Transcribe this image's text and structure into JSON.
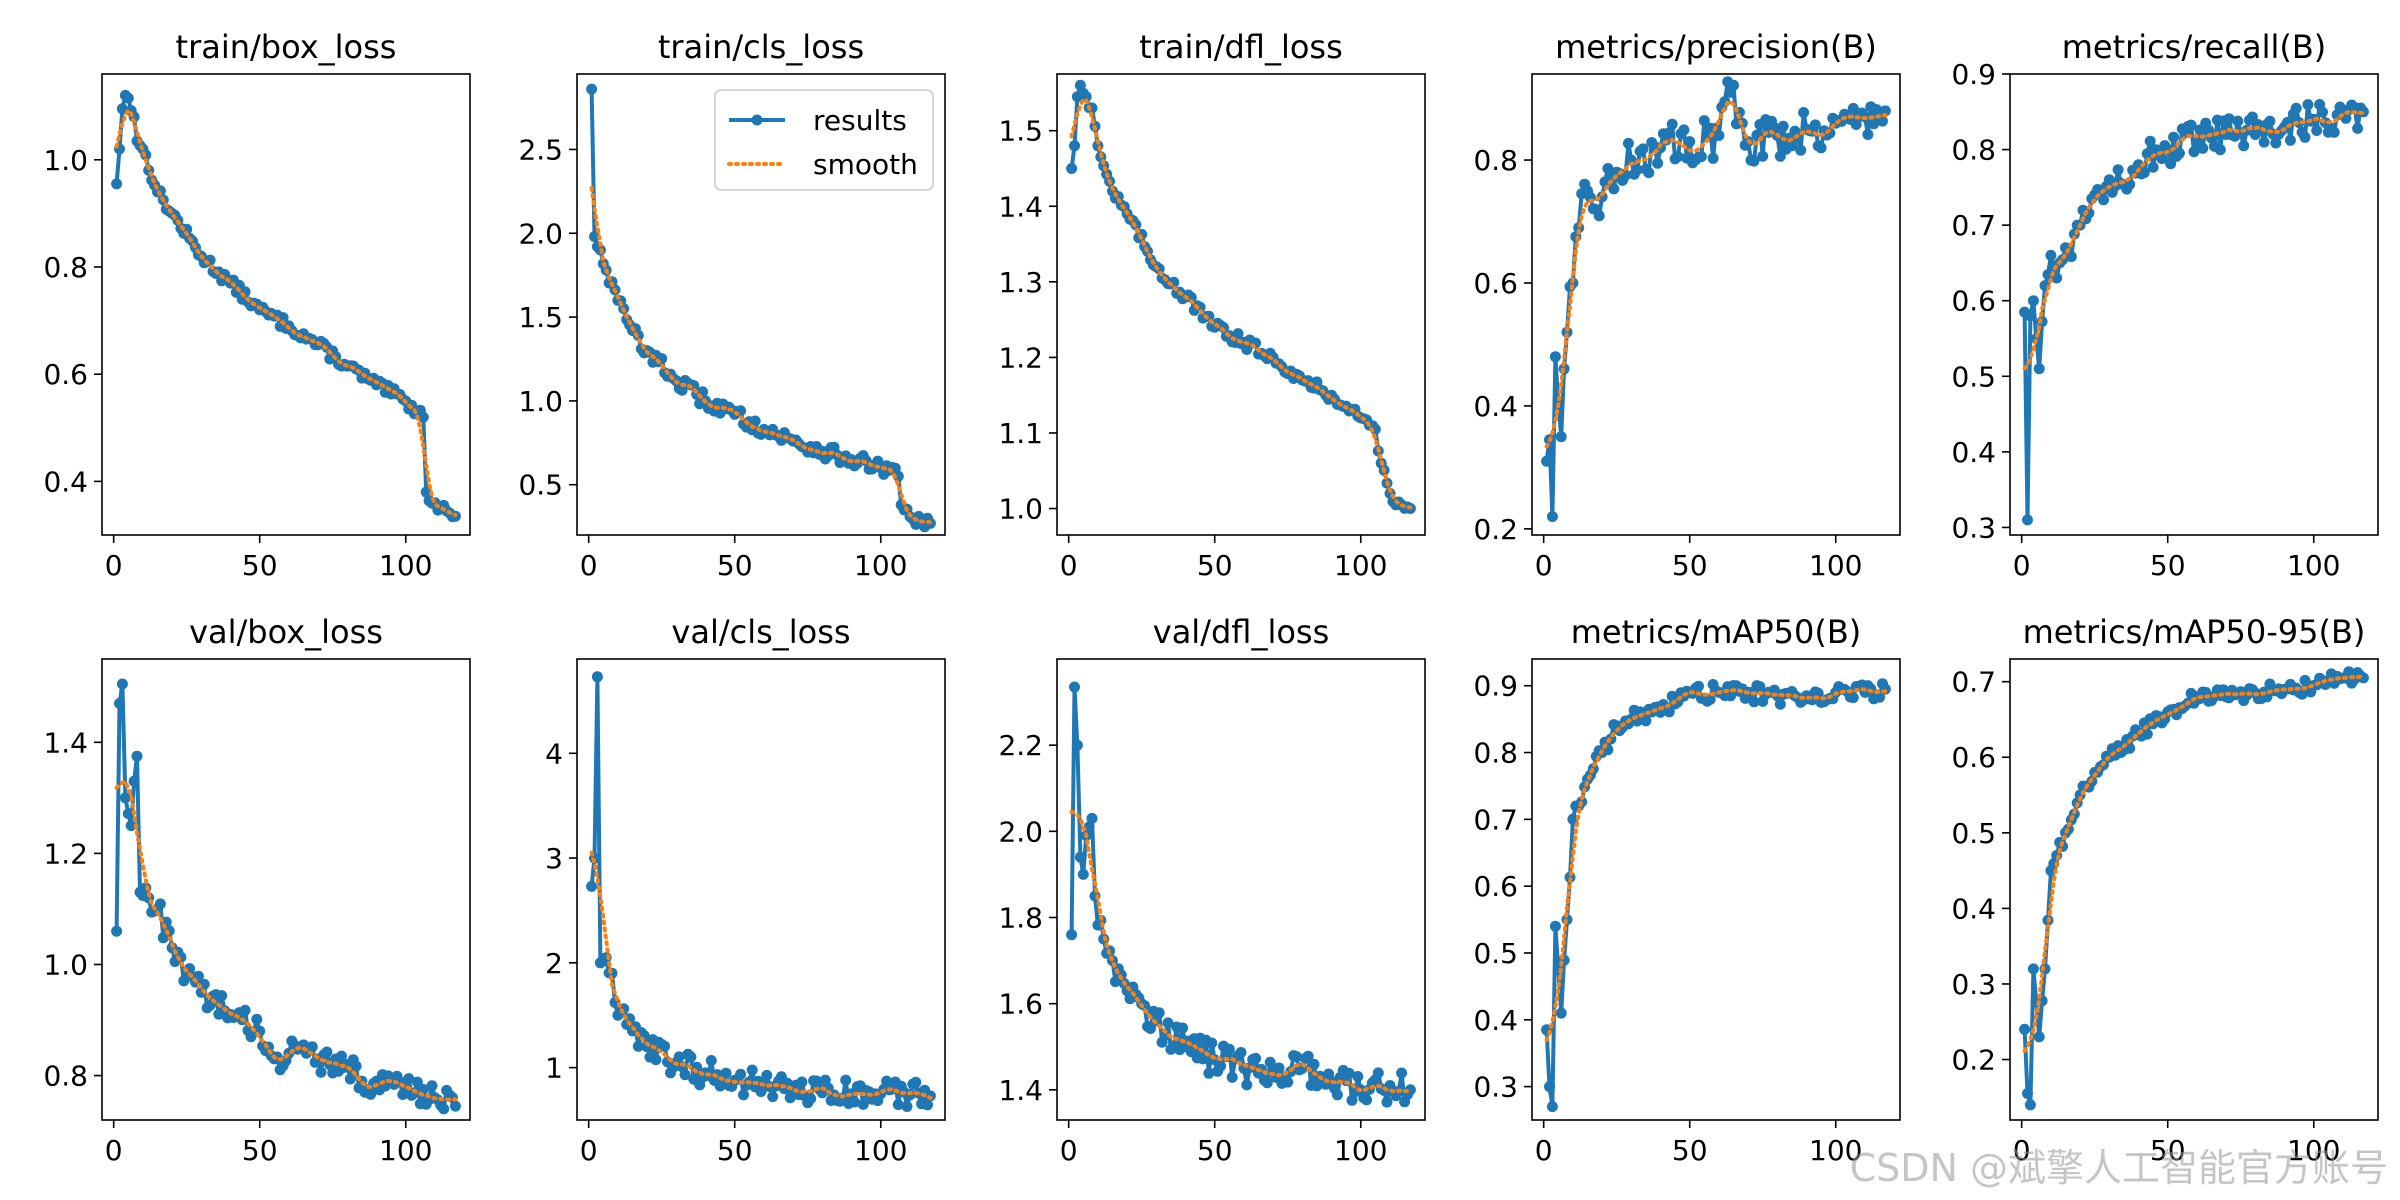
{
  "legend": {
    "series_label": "results",
    "smooth_label": "smooth"
  },
  "colors": {
    "series": "#1f77b4",
    "smooth": "#ff7f0e",
    "axis": "#000000"
  },
  "watermark": "CSDN @斌擎人工智能官方账号",
  "chart_data": [
    {
      "type": "line",
      "title": "train/box_loss",
      "xlim": [
        -4,
        122
      ],
      "ylim": [
        0.3,
        1.16
      ],
      "xticks": [
        0,
        50,
        100
      ],
      "yticks": [
        0.4,
        0.6,
        0.8,
        1.0
      ],
      "ytick_labels": [
        "0.4",
        "0.6",
        "0.8",
        "1.0"
      ],
      "x_range": [
        1,
        117
      ],
      "series_keypoints": [
        [
          1,
          0.955
        ],
        [
          2,
          1.02
        ],
        [
          3,
          1.095
        ],
        [
          4,
          1.12
        ],
        [
          5,
          1.115
        ],
        [
          7,
          1.08
        ],
        [
          8,
          1.035
        ],
        [
          10,
          1.02
        ],
        [
          15,
          0.94
        ],
        [
          20,
          0.9
        ],
        [
          30,
          0.82
        ],
        [
          40,
          0.77
        ],
        [
          50,
          0.72
        ],
        [
          60,
          0.69
        ],
        [
          70,
          0.655
        ],
        [
          80,
          0.615
        ],
        [
          90,
          0.58
        ],
        [
          100,
          0.55
        ],
        [
          104,
          0.53
        ],
        [
          106,
          0.52
        ],
        [
          107,
          0.38
        ],
        [
          110,
          0.36
        ],
        [
          114,
          0.345
        ],
        [
          117,
          0.335
        ]
      ],
      "noise": 0.008,
      "smooth_lag": 3,
      "legend": false
    },
    {
      "type": "line",
      "title": "train/cls_loss",
      "xlim": [
        -4,
        122
      ],
      "ylim": [
        0.2,
        2.95
      ],
      "xticks": [
        0,
        50,
        100
      ],
      "yticks": [
        0.5,
        1.0,
        1.5,
        2.0,
        2.5
      ],
      "ytick_labels": [
        "0.5",
        "1.0",
        "1.5",
        "2.0",
        "2.5"
      ],
      "x_range": [
        1,
        117
      ],
      "series_keypoints": [
        [
          1,
          2.86
        ],
        [
          2,
          1.98
        ],
        [
          4,
          1.9
        ],
        [
          6,
          1.78
        ],
        [
          10,
          1.6
        ],
        [
          15,
          1.42
        ],
        [
          20,
          1.3
        ],
        [
          30,
          1.12
        ],
        [
          40,
          1.0
        ],
        [
          50,
          0.92
        ],
        [
          60,
          0.83
        ],
        [
          70,
          0.76
        ],
        [
          80,
          0.7
        ],
        [
          90,
          0.65
        ],
        [
          100,
          0.6
        ],
        [
          106,
          0.55
        ],
        [
          107,
          0.38
        ],
        [
          110,
          0.31
        ],
        [
          114,
          0.28
        ],
        [
          117,
          0.27
        ]
      ],
      "noise": 0.01,
      "smooth_lag": 3,
      "legend": true
    },
    {
      "type": "line",
      "title": "train/dfl_loss",
      "xlim": [
        -4,
        122
      ],
      "ylim": [
        0.965,
        1.575
      ],
      "xticks": [
        0,
        50,
        100
      ],
      "yticks": [
        1.0,
        1.1,
        1.2,
        1.3,
        1.4,
        1.5
      ],
      "ytick_labels": [
        "1.0",
        "1.1",
        "1.2",
        "1.3",
        "1.4",
        "1.5"
      ],
      "x_range": [
        1,
        117
      ],
      "series_keypoints": [
        [
          1,
          1.45
        ],
        [
          2,
          1.48
        ],
        [
          3,
          1.545
        ],
        [
          4,
          1.56
        ],
        [
          6,
          1.545
        ],
        [
          8,
          1.53
        ],
        [
          10,
          1.48
        ],
        [
          15,
          1.42
        ],
        [
          20,
          1.39
        ],
        [
          30,
          1.32
        ],
        [
          40,
          1.28
        ],
        [
          50,
          1.24
        ],
        [
          60,
          1.22
        ],
        [
          70,
          1.2
        ],
        [
          80,
          1.17
        ],
        [
          90,
          1.15
        ],
        [
          100,
          1.12
        ],
        [
          105,
          1.105
        ],
        [
          107,
          1.06
        ],
        [
          110,
          1.02
        ],
        [
          114,
          1.005
        ],
        [
          117,
          1.0
        ]
      ],
      "noise": 0.008,
      "smooth_lag": 3,
      "legend": false
    },
    {
      "type": "line",
      "title": "metrics/precision(B)",
      "xlim": [
        -4,
        122
      ],
      "ylim": [
        0.19,
        0.94
      ],
      "xticks": [
        0,
        50,
        100
      ],
      "yticks": [
        0.2,
        0.4,
        0.6,
        0.8
      ],
      "ytick_labels": [
        "0.2",
        "0.4",
        "0.6",
        "0.8"
      ],
      "x_range": [
        1,
        117
      ],
      "series_keypoints": [
        [
          1,
          0.31
        ],
        [
          2,
          0.345
        ],
        [
          3,
          0.22
        ],
        [
          4,
          0.48
        ],
        [
          6,
          0.35
        ],
        [
          8,
          0.52
        ],
        [
          10,
          0.6
        ],
        [
          12,
          0.69
        ],
        [
          15,
          0.75
        ],
        [
          20,
          0.74
        ],
        [
          25,
          0.78
        ],
        [
          30,
          0.8
        ],
        [
          40,
          0.82
        ],
        [
          50,
          0.83
        ],
        [
          60,
          0.84
        ],
        [
          64,
          0.91
        ],
        [
          70,
          0.83
        ],
        [
          80,
          0.84
        ],
        [
          90,
          0.85
        ],
        [
          100,
          0.86
        ],
        [
          110,
          0.87
        ],
        [
          117,
          0.88
        ]
      ],
      "noise": 0.03,
      "smooth_lag": 4,
      "legend": false
    },
    {
      "type": "line",
      "title": "metrics/recall(B)",
      "xlim": [
        -4,
        122
      ],
      "ylim": [
        0.29,
        0.9
      ],
      "xticks": [
        0,
        50,
        100
      ],
      "yticks": [
        0.3,
        0.4,
        0.5,
        0.6,
        0.7,
        0.8,
        0.9
      ],
      "ytick_labels": [
        "0.3",
        "0.4",
        "0.5",
        "0.6",
        "0.7",
        "0.8",
        "0.9"
      ],
      "x_range": [
        1,
        117
      ],
      "series_keypoints": [
        [
          1,
          0.585
        ],
        [
          2,
          0.31
        ],
        [
          3,
          0.58
        ],
        [
          4,
          0.6
        ],
        [
          6,
          0.51
        ],
        [
          8,
          0.62
        ],
        [
          10,
          0.66
        ],
        [
          12,
          0.63
        ],
        [
          15,
          0.67
        ],
        [
          20,
          0.7
        ],
        [
          25,
          0.74
        ],
        [
          30,
          0.76
        ],
        [
          40,
          0.78
        ],
        [
          50,
          0.8
        ],
        [
          60,
          0.81
        ],
        [
          70,
          0.82
        ],
        [
          80,
          0.82
        ],
        [
          90,
          0.83
        ],
        [
          100,
          0.84
        ],
        [
          110,
          0.85
        ],
        [
          117,
          0.85
        ]
      ],
      "noise": 0.025,
      "smooth_lag": 4,
      "legend": false
    },
    {
      "type": "line",
      "title": "val/box_loss",
      "xlim": [
        -4,
        122
      ],
      "ylim": [
        0.72,
        1.55
      ],
      "xticks": [
        0,
        50,
        100
      ],
      "yticks": [
        0.8,
        1.0,
        1.2,
        1.4
      ],
      "ytick_labels": [
        "0.8",
        "1.0",
        "1.2",
        "1.4"
      ],
      "x_range": [
        1,
        117
      ],
      "series_keypoints": [
        [
          1,
          1.06
        ],
        [
          2,
          1.47
        ],
        [
          3,
          1.505
        ],
        [
          4,
          1.3
        ],
        [
          6,
          1.25
        ],
        [
          7,
          1.33
        ],
        [
          8,
          1.375
        ],
        [
          9,
          1.13
        ],
        [
          12,
          1.12
        ],
        [
          15,
          1.1
        ],
        [
          20,
          1.03
        ],
        [
          25,
          0.98
        ],
        [
          30,
          0.95
        ],
        [
          40,
          0.91
        ],
        [
          50,
          0.88
        ],
        [
          55,
          0.83
        ],
        [
          60,
          0.84
        ],
        [
          70,
          0.83
        ],
        [
          80,
          0.82
        ],
        [
          85,
          0.79
        ],
        [
          90,
          0.79
        ],
        [
          100,
          0.78
        ],
        [
          110,
          0.76
        ],
        [
          117,
          0.745
        ]
      ],
      "noise": 0.018,
      "smooth_lag": 4,
      "legend": false
    },
    {
      "type": "line",
      "title": "val/cls_loss",
      "xlim": [
        -4,
        122
      ],
      "ylim": [
        0.5,
        4.9
      ],
      "xticks": [
        0,
        50,
        100
      ],
      "yticks": [
        1,
        2,
        3,
        4
      ],
      "ytick_labels": [
        "1",
        "2",
        "3",
        "4"
      ],
      "x_range": [
        1,
        117
      ],
      "series_keypoints": [
        [
          1,
          2.73
        ],
        [
          2,
          3.0
        ],
        [
          3,
          4.73
        ],
        [
          4,
          2.0
        ],
        [
          6,
          2.05
        ],
        [
          8,
          1.9
        ],
        [
          10,
          1.5
        ],
        [
          15,
          1.35
        ],
        [
          20,
          1.2
        ],
        [
          30,
          1.05
        ],
        [
          40,
          0.95
        ],
        [
          50,
          0.88
        ],
        [
          60,
          0.82
        ],
        [
          70,
          0.78
        ],
        [
          80,
          0.76
        ],
        [
          90,
          0.75
        ],
        [
          100,
          0.75
        ],
        [
          110,
          0.74
        ],
        [
          117,
          0.73
        ]
      ],
      "noise": 0.02,
      "smooth_lag": 4,
      "legend": false
    },
    {
      "type": "line",
      "title": "val/dfl_loss",
      "xlim": [
        -4,
        122
      ],
      "ylim": [
        1.33,
        2.4
      ],
      "xticks": [
        0,
        50,
        100
      ],
      "yticks": [
        1.4,
        1.6,
        1.8,
        2.0,
        2.2
      ],
      "ytick_labels": [
        "1.4",
        "1.6",
        "1.8",
        "2.0",
        "2.2"
      ],
      "x_range": [
        1,
        117
      ],
      "series_keypoints": [
        [
          1,
          1.76
        ],
        [
          2,
          2.335
        ],
        [
          3,
          2.2
        ],
        [
          4,
          1.94
        ],
        [
          5,
          1.9
        ],
        [
          6,
          1.99
        ],
        [
          8,
          2.03
        ],
        [
          9,
          1.85
        ],
        [
          12,
          1.75
        ],
        [
          15,
          1.7
        ],
        [
          20,
          1.63
        ],
        [
          25,
          1.6
        ],
        [
          30,
          1.56
        ],
        [
          40,
          1.5
        ],
        [
          50,
          1.47
        ],
        [
          60,
          1.45
        ],
        [
          70,
          1.44
        ],
        [
          80,
          1.45
        ],
        [
          90,
          1.42
        ],
        [
          100,
          1.4
        ],
        [
          110,
          1.41
        ],
        [
          117,
          1.4
        ]
      ],
      "noise": 0.022,
      "smooth_lag": 4,
      "legend": false
    },
    {
      "type": "line",
      "title": "metrics/mAP50(B)",
      "xlim": [
        -4,
        122
      ],
      "ylim": [
        0.25,
        0.94
      ],
      "xticks": [
        0,
        50,
        100
      ],
      "yticks": [
        0.3,
        0.4,
        0.5,
        0.6,
        0.7,
        0.8,
        0.9
      ],
      "ytick_labels": [
        "0.3",
        "0.4",
        "0.5",
        "0.6",
        "0.7",
        "0.8",
        "0.9"
      ],
      "x_range": [
        1,
        117
      ],
      "series_keypoints": [
        [
          1,
          0.385
        ],
        [
          2,
          0.3
        ],
        [
          3,
          0.27
        ],
        [
          4,
          0.54
        ],
        [
          6,
          0.41
        ],
        [
          8,
          0.55
        ],
        [
          10,
          0.7
        ],
        [
          12,
          0.72
        ],
        [
          15,
          0.76
        ],
        [
          20,
          0.8
        ],
        [
          25,
          0.84
        ],
        [
          30,
          0.85
        ],
        [
          40,
          0.86
        ],
        [
          50,
          0.89
        ],
        [
          60,
          0.89
        ],
        [
          70,
          0.89
        ],
        [
          80,
          0.885
        ],
        [
          90,
          0.885
        ],
        [
          100,
          0.89
        ],
        [
          110,
          0.89
        ],
        [
          117,
          0.895
        ]
      ],
      "noise": 0.012,
      "smooth_lag": 4,
      "legend": false
    },
    {
      "type": "line",
      "title": "metrics/mAP50-95(B)",
      "xlim": [
        -4,
        122
      ],
      "ylim": [
        0.12,
        0.73
      ],
      "xticks": [
        0,
        50,
        100
      ],
      "yticks": [
        0.2,
        0.3,
        0.4,
        0.5,
        0.6,
        0.7
      ],
      "ytick_labels": [
        "0.2",
        "0.3",
        "0.4",
        "0.5",
        "0.6",
        "0.7"
      ],
      "x_range": [
        1,
        117
      ],
      "series_keypoints": [
        [
          1,
          0.24
        ],
        [
          2,
          0.155
        ],
        [
          3,
          0.14
        ],
        [
          4,
          0.32
        ],
        [
          6,
          0.23
        ],
        [
          8,
          0.32
        ],
        [
          10,
          0.45
        ],
        [
          12,
          0.47
        ],
        [
          15,
          0.5
        ],
        [
          20,
          0.55
        ],
        [
          25,
          0.58
        ],
        [
          30,
          0.6
        ],
        [
          40,
          0.63
        ],
        [
          50,
          0.66
        ],
        [
          60,
          0.68
        ],
        [
          70,
          0.68
        ],
        [
          80,
          0.685
        ],
        [
          90,
          0.69
        ],
        [
          100,
          0.695
        ],
        [
          110,
          0.705
        ],
        [
          117,
          0.705
        ]
      ],
      "noise": 0.01,
      "smooth_lag": 4,
      "legend": false
    }
  ]
}
